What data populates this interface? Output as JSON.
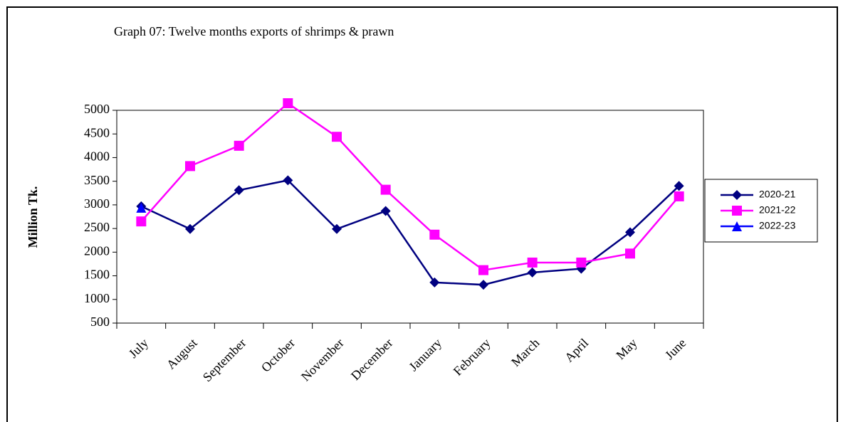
{
  "chart_data": {
    "type": "line",
    "title": "Graph 07: Twelve months exports of shrimps & prawn",
    "y_label": "Million Tk.",
    "categories": [
      "July",
      "August",
      "September",
      "October",
      "November",
      "December",
      "January",
      "February",
      "March",
      "April",
      "May",
      "June"
    ],
    "series": [
      {
        "name": "2020-21",
        "color": "#000080",
        "marker": "diamond",
        "values": [
          2970,
          2490,
          3310,
          3520,
          2490,
          2870,
          1360,
          1310,
          1570,
          1650,
          2420,
          3400
        ]
      },
      {
        "name": "2021-22",
        "color": "#ff00ff",
        "marker": "square",
        "values": [
          2650,
          3820,
          4250,
          5150,
          4440,
          3320,
          2370,
          1620,
          1780,
          1780,
          1970,
          3180
        ]
      },
      {
        "name": "2022-23",
        "color": "#0000ff",
        "marker": "triangle",
        "values": [
          2940,
          null,
          null,
          null,
          null,
          null,
          null,
          null,
          null,
          null,
          null,
          null
        ]
      }
    ],
    "ylim": [
      500,
      5000
    ],
    "yticks": [
      500,
      1000,
      1500,
      2000,
      2500,
      3000,
      3500,
      4000,
      4500,
      5000
    ],
    "legend": "right"
  }
}
